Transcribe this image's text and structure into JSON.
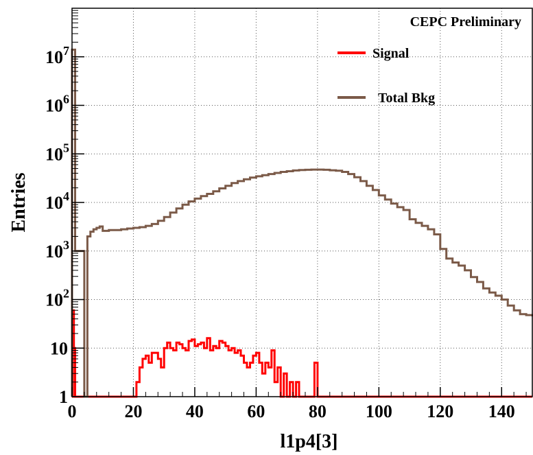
{
  "chart_data": {
    "type": "line",
    "title": "",
    "watermark": "CEPC Preliminary",
    "xlabel": "l1p4[3]",
    "ylabel": "Entries",
    "xlim": [
      0,
      150
    ],
    "ylim": [
      1,
      100000000
    ],
    "yscale": "log",
    "grid": true,
    "legend_position": "top-right",
    "x_ticks": [
      0,
      20,
      40,
      60,
      80,
      100,
      120,
      140
    ],
    "x_tick_labels": [
      "0",
      "20",
      "40",
      "60",
      "80",
      "100",
      "120",
      "140"
    ],
    "y_ticks": [
      1,
      10,
      100,
      1000,
      10000,
      100000,
      1000000,
      10000000
    ],
    "y_tick_labels": [
      {
        "base": "1",
        "exp": ""
      },
      {
        "base": "10",
        "exp": ""
      },
      {
        "base": "10",
        "exp": "2"
      },
      {
        "base": "10",
        "exp": "3"
      },
      {
        "base": "10",
        "exp": "4"
      },
      {
        "base": "10",
        "exp": "5"
      },
      {
        "base": "10",
        "exp": "6"
      },
      {
        "base": "10",
        "exp": "7"
      }
    ],
    "series": [
      {
        "name": "Signal",
        "color": "#ff0000",
        "style": "step",
        "points": [
          [
            0,
            1
          ],
          [
            0.3,
            60
          ],
          [
            0.6,
            10
          ],
          [
            1,
            1
          ],
          [
            20,
            1
          ],
          [
            21,
            2
          ],
          [
            22,
            4
          ],
          [
            23,
            6
          ],
          [
            24,
            7
          ],
          [
            25,
            5
          ],
          [
            26,
            8
          ],
          [
            27,
            8
          ],
          [
            28,
            6
          ],
          [
            29,
            4
          ],
          [
            30,
            10
          ],
          [
            31,
            13
          ],
          [
            32,
            10
          ],
          [
            33,
            9
          ],
          [
            34,
            13
          ],
          [
            35,
            12
          ],
          [
            36,
            10
          ],
          [
            37,
            9
          ],
          [
            38,
            14
          ],
          [
            39,
            15
          ],
          [
            40,
            11
          ],
          [
            41,
            12
          ],
          [
            42,
            13
          ],
          [
            43,
            10
          ],
          [
            44,
            16
          ],
          [
            45,
            9
          ],
          [
            46,
            11
          ],
          [
            47,
            10
          ],
          [
            48,
            14
          ],
          [
            49,
            13
          ],
          [
            50,
            11
          ],
          [
            51,
            9
          ],
          [
            52,
            10
          ],
          [
            53,
            8
          ],
          [
            54,
            9
          ],
          [
            55,
            7
          ],
          [
            56,
            5
          ],
          [
            57,
            4
          ],
          [
            58,
            5
          ],
          [
            59,
            7
          ],
          [
            60,
            8
          ],
          [
            61,
            5
          ],
          [
            62,
            3
          ],
          [
            63,
            5
          ],
          [
            64,
            4
          ],
          [
            65,
            9
          ],
          [
            66,
            2
          ],
          [
            67,
            4
          ],
          [
            68,
            1
          ],
          [
            69,
            3
          ],
          [
            70,
            1
          ],
          [
            71,
            2
          ],
          [
            72,
            1
          ],
          [
            73,
            2
          ],
          [
            74,
            1
          ],
          [
            79,
            5
          ],
          [
            80,
            1
          ],
          [
            150,
            1
          ]
        ]
      },
      {
        "name": "Total Bkg",
        "color": "#7b5a48",
        "style": "step",
        "points": [
          [
            0,
            14000000
          ],
          [
            1,
            1000
          ],
          [
            4,
            1
          ],
          [
            5,
            2000
          ],
          [
            6,
            2500
          ],
          [
            7,
            2800
          ],
          [
            8,
            3000
          ],
          [
            9,
            3200
          ],
          [
            10,
            2600
          ],
          [
            12,
            2700
          ],
          [
            14,
            2700
          ],
          [
            16,
            2800
          ],
          [
            18,
            2900
          ],
          [
            20,
            3000
          ],
          [
            22,
            3100
          ],
          [
            24,
            3300
          ],
          [
            26,
            3600
          ],
          [
            28,
            4200
          ],
          [
            30,
            5000
          ],
          [
            32,
            6200
          ],
          [
            34,
            7500
          ],
          [
            36,
            9000
          ],
          [
            38,
            10500
          ],
          [
            40,
            12000
          ],
          [
            42,
            13500
          ],
          [
            44,
            15000
          ],
          [
            46,
            17000
          ],
          [
            48,
            19500
          ],
          [
            50,
            22000
          ],
          [
            52,
            25000
          ],
          [
            54,
            27500
          ],
          [
            56,
            30000
          ],
          [
            58,
            32500
          ],
          [
            60,
            34500
          ],
          [
            62,
            36500
          ],
          [
            64,
            38500
          ],
          [
            66,
            40500
          ],
          [
            68,
            42500
          ],
          [
            70,
            44000
          ],
          [
            72,
            45500
          ],
          [
            74,
            46500
          ],
          [
            76,
            47000
          ],
          [
            78,
            47500
          ],
          [
            80,
            47500
          ],
          [
            82,
            47000
          ],
          [
            84,
            46000
          ],
          [
            86,
            45000
          ],
          [
            88,
            42500
          ],
          [
            90,
            38500
          ],
          [
            92,
            33000
          ],
          [
            94,
            27500
          ],
          [
            96,
            22000
          ],
          [
            98,
            18000
          ],
          [
            100,
            14000
          ],
          [
            102,
            11500
          ],
          [
            104,
            9500
          ],
          [
            106,
            8000
          ],
          [
            108,
            7000
          ],
          [
            110,
            4500
          ],
          [
            112,
            3800
          ],
          [
            114,
            3300
          ],
          [
            116,
            2800
          ],
          [
            118,
            2200
          ],
          [
            120,
            1100
          ],
          [
            122,
            700
          ],
          [
            124,
            580
          ],
          [
            126,
            500
          ],
          [
            128,
            400
          ],
          [
            130,
            290
          ],
          [
            132,
            230
          ],
          [
            134,
            170
          ],
          [
            136,
            140
          ],
          [
            138,
            120
          ],
          [
            140,
            100
          ],
          [
            142,
            75
          ],
          [
            144,
            60
          ],
          [
            146,
            50
          ],
          [
            148,
            48
          ],
          [
            150,
            45
          ]
        ]
      }
    ]
  }
}
